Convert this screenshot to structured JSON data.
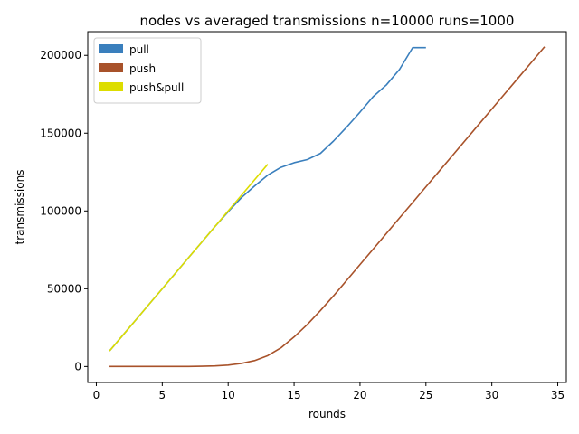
{
  "chart_data": {
    "type": "line",
    "title": "nodes vs averaged transmissions n=10000 runs=1000",
    "xlabel": "rounds",
    "ylabel": "transmissions",
    "xlim": [
      -0.65,
      35.65
    ],
    "ylim": [
      -10250,
      215250
    ],
    "xticks": [
      0,
      5,
      10,
      15,
      20,
      25,
      30,
      35
    ],
    "yticks": [
      0,
      50000,
      100000,
      150000,
      200000
    ],
    "grid": false,
    "legend_position": "top-left",
    "series": [
      {
        "name": "pull",
        "color": "#3a7fbd",
        "x": [
          1,
          2,
          3,
          4,
          5,
          6,
          7,
          8,
          9,
          10,
          11,
          12,
          13,
          14,
          15,
          16,
          17,
          18,
          19,
          20,
          21,
          22,
          23,
          24,
          25
        ],
        "y": [
          10000,
          20000,
          30000,
          40000,
          50000,
          60000,
          70000,
          80000,
          90000,
          99500,
          108500,
          116000,
          123000,
          128000,
          131000,
          133000,
          137000,
          145000,
          154000,
          163500,
          173500,
          181000,
          191000,
          205000,
          205000
        ]
      },
      {
        "name": "push",
        "color": "#a8522a",
        "x": [
          1,
          2,
          3,
          4,
          5,
          6,
          7,
          8,
          9,
          10,
          11,
          12,
          13,
          14,
          15,
          16,
          17,
          18,
          19,
          20,
          21,
          22,
          23,
          24,
          25,
          26,
          27,
          28,
          29,
          30,
          31,
          32,
          33,
          34
        ],
        "y": [
          0,
          0,
          0,
          0,
          5,
          15,
          50,
          150,
          400,
          900,
          2000,
          3800,
          7000,
          12000,
          19000,
          27000,
          36000,
          45500,
          55500,
          65500,
          75500,
          85500,
          95500,
          105500,
          115500,
          125500,
          135500,
          145500,
          155500,
          165500,
          175500,
          185500,
          195500,
          205500
        ]
      },
      {
        "name": "push&pull",
        "color": "#dddd00",
        "x": [
          1,
          2,
          3,
          4,
          5,
          6,
          7,
          8,
          9,
          10,
          11,
          12,
          13
        ],
        "y": [
          10000,
          20000,
          30000,
          40000,
          50000,
          60000,
          70000,
          80000,
          90000,
          100000,
          110000,
          120000,
          130000
        ]
      }
    ]
  }
}
